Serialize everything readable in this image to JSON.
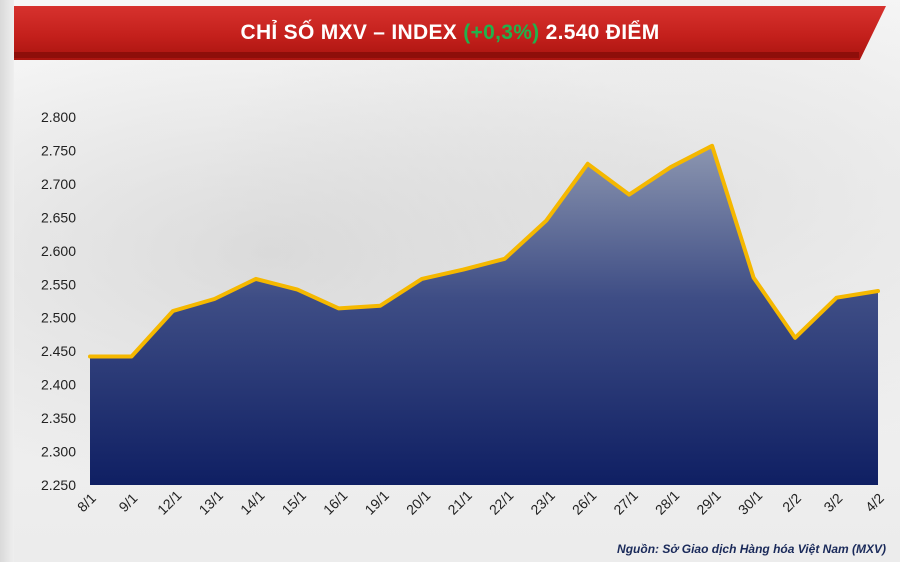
{
  "header": {
    "title_prefix": "CHỈ SỐ MXV – INDEX",
    "change": "(+0,3%)",
    "title_suffix": "2.540 ĐIỂM"
  },
  "source": "Nguồn: Sở Giao dịch Hàng hóa Việt Nam (MXV)",
  "colors": {
    "header_red": "#c4201c",
    "change_green": "#22b14c",
    "line": "#f5b800",
    "area_top": "#8c96b0",
    "area_bottom": "#0f1f63"
  },
  "chart_data": {
    "type": "area",
    "title": "CHỈ SỐ MXV – INDEX (+0,3%) 2.540 ĐIỂM",
    "xlabel": "",
    "ylabel": "",
    "categories": [
      "8/1",
      "9/1",
      "12/1",
      "13/1",
      "14/1",
      "15/1",
      "16/1",
      "19/1",
      "20/1",
      "21/1",
      "22/1",
      "23/1",
      "26/1",
      "27/1",
      "28/1",
      "29/1",
      "30/1",
      "2/2",
      "3/2",
      "4/2"
    ],
    "values": [
      2442,
      2442,
      2510,
      2528,
      2558,
      2542,
      2514,
      2518,
      2558,
      2572,
      2588,
      2645,
      2730,
      2684,
      2725,
      2757,
      2560,
      2470,
      2530,
      2540
    ],
    "ylim": [
      2250,
      2800
    ],
    "yticks": [
      2250,
      2300,
      2350,
      2400,
      2450,
      2500,
      2550,
      2600,
      2650,
      2700,
      2750,
      2800
    ],
    "ytick_labels": [
      "2.250",
      "2.300",
      "2.350",
      "2.400",
      "2.450",
      "2.500",
      "2.550",
      "2.600",
      "2.650",
      "2.700",
      "2.750",
      "2.800"
    ],
    "grid": false,
    "legend": "none"
  }
}
